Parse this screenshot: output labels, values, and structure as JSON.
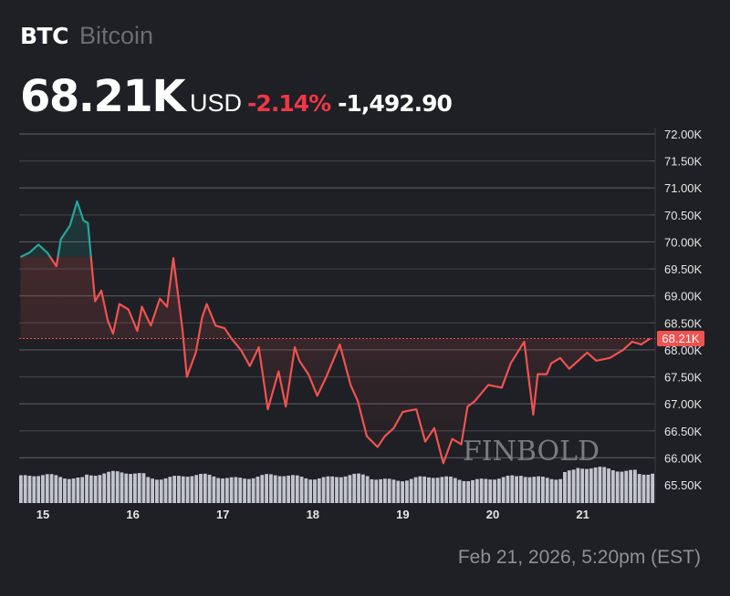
{
  "header": {
    "ticker": "BTC",
    "name": "Bitcoin",
    "price": "68.21K",
    "currency": "USD",
    "change_pct": "-2.14%",
    "change_abs": "-1,492.90"
  },
  "colors": {
    "background": "#1e2025",
    "up": "#26a69a",
    "down": "#ef5350",
    "pct_text": "#f23645",
    "grid": "#4a4c52",
    "volume": "#d1d4dc"
  },
  "price_tag": "68.21K",
  "watermark": "FINBOLD",
  "footer": {
    "timestamp": "Feb 21, 2026, 5:20pm (EST)"
  },
  "chart_data": {
    "type": "line",
    "title": "BTC Bitcoin",
    "xlabel": "",
    "ylabel": "USD",
    "ylim": [
      65.3,
      72.2
    ],
    "y_ticks": [
      "72.00K",
      "71.50K",
      "71.00K",
      "70.50K",
      "70.00K",
      "69.50K",
      "69.00K",
      "68.50K",
      "68.00K",
      "67.50K",
      "67.00K",
      "66.50K",
      "66.00K",
      "65.50K"
    ],
    "x_ticks": [
      "15",
      "16",
      "17",
      "18",
      "19",
      "20",
      "21"
    ],
    "grid": true,
    "reference_price": 68.21,
    "last_price": 68.21,
    "series": [
      {
        "name": "BTC/USD (K)",
        "x": [
          14.75,
          14.85,
          14.95,
          15.05,
          15.15,
          15.2,
          15.3,
          15.38,
          15.45,
          15.5,
          15.58,
          15.65,
          15.72,
          15.78,
          15.85,
          15.95,
          16.05,
          16.1,
          16.2,
          16.3,
          16.38,
          16.45,
          16.55,
          16.6,
          16.7,
          16.77,
          16.82,
          16.92,
          17.02,
          17.1,
          17.2,
          17.3,
          17.4,
          17.5,
          17.62,
          17.7,
          17.8,
          17.85,
          17.95,
          18.05,
          18.15,
          18.3,
          18.42,
          18.5,
          18.6,
          18.72,
          18.8,
          18.9,
          19.0,
          19.15,
          19.25,
          19.35,
          19.45,
          19.55,
          19.65,
          19.72,
          19.8,
          19.95,
          20.1,
          20.2,
          20.35,
          20.45,
          20.5,
          20.6,
          20.65,
          20.75,
          20.85,
          20.95,
          21.05,
          21.15,
          21.3,
          21.45,
          21.55,
          21.65,
          21.75
        ],
        "values": [
          69.72,
          69.8,
          69.95,
          69.8,
          69.55,
          70.05,
          70.3,
          70.75,
          70.4,
          70.35,
          68.9,
          69.1,
          68.55,
          68.3,
          68.85,
          68.75,
          68.35,
          68.8,
          68.45,
          68.95,
          68.8,
          69.7,
          68.4,
          67.5,
          67.95,
          68.6,
          68.85,
          68.45,
          68.4,
          68.2,
          68.0,
          67.7,
          68.05,
          66.9,
          67.6,
          66.95,
          68.05,
          67.8,
          67.55,
          67.15,
          67.5,
          68.1,
          67.35,
          67.05,
          66.4,
          66.2,
          66.4,
          66.55,
          66.85,
          66.9,
          66.3,
          66.55,
          65.9,
          66.35,
          66.25,
          66.95,
          67.05,
          67.35,
          67.3,
          67.75,
          68.15,
          66.8,
          67.55,
          67.55,
          67.75,
          67.85,
          67.65,
          67.8,
          67.95,
          67.8,
          67.85,
          68.0,
          68.15,
          68.1,
          68.21
        ]
      }
    ],
    "volume_bars": "relative, fairly flat with a rise on day 21"
  }
}
